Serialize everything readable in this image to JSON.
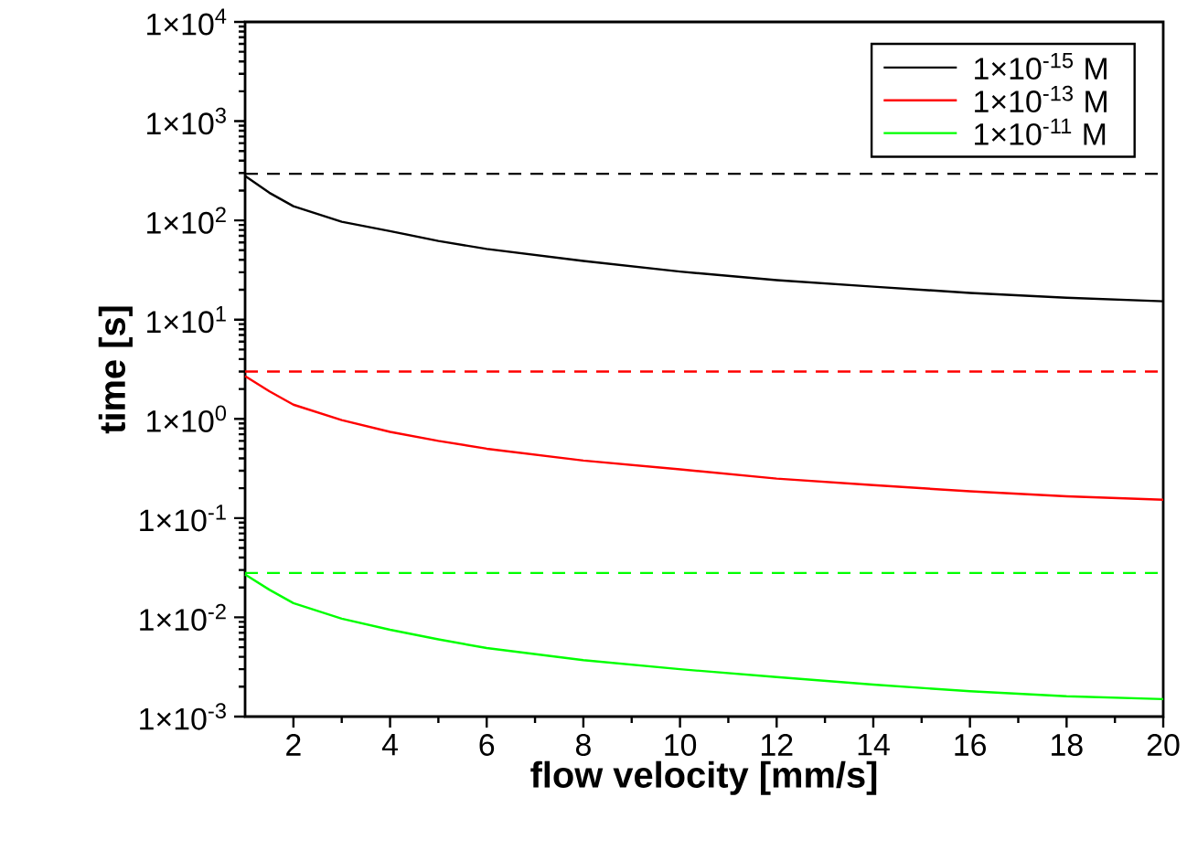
{
  "chart_data": {
    "type": "line",
    "xlabel": "flow velocity [mm/s]",
    "ylabel": "time [s]",
    "log": "y",
    "legend": "top right",
    "line_style": "solid",
    "xlim": [
      1,
      20
    ],
    "xticks": [
      2,
      4,
      6,
      8,
      10,
      12,
      14,
      16,
      18,
      20
    ],
    "ylim": [
      0.001,
      10000
    ],
    "yticks": [
      {
        "value": 0.001,
        "label": "1×10$^{-3}$"
      },
      {
        "value": 0.01,
        "label": "1×10$^{-2}$"
      },
      {
        "value": 0.1,
        "label": "1×10$^{-1}$"
      },
      {
        "value": 1,
        "label": "1×10$^{0}$"
      },
      {
        "value": 10,
        "label": "1×10$^{1}$"
      },
      {
        "value": 100,
        "label": "1×10$^{2}$"
      },
      {
        "value": 1000,
        "label": "1×10$^{3}$"
      },
      {
        "value": 10000,
        "label": "1×10$^{4}$"
      }
    ],
    "x": [
      1,
      1.5,
      2,
      3,
      4,
      5,
      6,
      8,
      10,
      12,
      14,
      16,
      18,
      20
    ],
    "series": [
      {
        "name": "1×10$^{-15}$ M",
        "color": "#000000",
        "values": [
          280,
          190,
          139,
          97,
          78,
          62,
          51.5,
          39,
          30.5,
          25,
          21.5,
          18.6,
          16.6,
          15.3
        ]
      },
      {
        "name": "1×10$^{-13}$ M",
        "color": "#ff0000",
        "values": [
          2.7,
          1.9,
          1.39,
          0.97,
          0.74,
          0.6,
          0.5,
          0.38,
          0.31,
          0.25,
          0.215,
          0.186,
          0.166,
          0.153
        ]
      },
      {
        "name": "1×10$^{-11}$ M",
        "color": "#00ff00",
        "values": [
          0.027,
          0.019,
          0.0139,
          0.0097,
          0.0075,
          0.006,
          0.0049,
          0.0037,
          0.003,
          0.0025,
          0.0021,
          0.0018,
          0.0016,
          0.0015
        ]
      }
    ],
    "ref_lines": [
      {
        "axis": "y",
        "value": 295,
        "color": "#000000",
        "line_style": "dashed"
      },
      {
        "axis": "y",
        "value": 3,
        "color": "#ff0000",
        "line_style": "dashed"
      },
      {
        "axis": "y",
        "value": 0.028,
        "color": "#00ff00",
        "line_style": "dashed"
      }
    ]
  }
}
